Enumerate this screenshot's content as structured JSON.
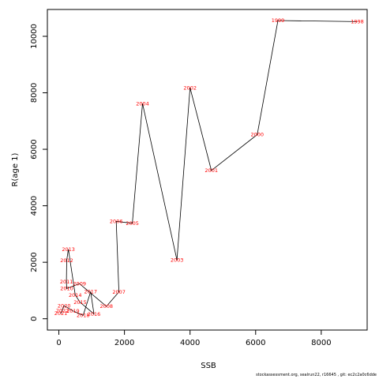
{
  "chart_data": {
    "type": "line",
    "xlabel": "SSB",
    "ylabel": "R(age 1)",
    "xlim": [
      -350,
      9400
    ],
    "ylim": [
      -400,
      10950
    ],
    "xticks": [
      0,
      2000,
      4000,
      6000,
      8000
    ],
    "yticks": [
      0,
      2000,
      4000,
      6000,
      8000,
      10000
    ],
    "grid": false,
    "line_color": "#000000",
    "label_color": "#ff0000",
    "points": [
      {
        "label": "1998",
        "x": 9100,
        "y": 10520
      },
      {
        "label": "1999",
        "x": 6680,
        "y": 10560
      },
      {
        "label": "2000",
        "x": 6050,
        "y": 6520
      },
      {
        "label": "2001",
        "x": 4650,
        "y": 5250
      },
      {
        "label": "2002",
        "x": 4000,
        "y": 8180
      },
      {
        "label": "2003",
        "x": 3600,
        "y": 2080
      },
      {
        "label": "2004",
        "x": 2550,
        "y": 7620
      },
      {
        "label": "2005",
        "x": 2240,
        "y": 3380
      },
      {
        "label": "2006",
        "x": 1750,
        "y": 3450
      },
      {
        "label": "2007",
        "x": 1830,
        "y": 950
      },
      {
        "label": "2008",
        "x": 1450,
        "y": 440
      },
      {
        "label": "2009",
        "x": 630,
        "y": 1240
      },
      {
        "label": "2010",
        "x": 240,
        "y": 1070
      },
      {
        "label": "2011",
        "x": 230,
        "y": 1310
      },
      {
        "label": "2012",
        "x": 240,
        "y": 2070
      },
      {
        "label": "2013",
        "x": 290,
        "y": 2460
      },
      {
        "label": "2014",
        "x": 500,
        "y": 840
      },
      {
        "label": "2015",
        "x": 650,
        "y": 580
      },
      {
        "label": "2016",
        "x": 1070,
        "y": 170
      },
      {
        "label": "2017",
        "x": 970,
        "y": 960
      },
      {
        "label": "2018",
        "x": 740,
        "y": 120
      },
      {
        "label": "2019",
        "x": 430,
        "y": 280
      },
      {
        "label": "2020",
        "x": 160,
        "y": 460
      },
      {
        "label": "2021",
        "x": 60,
        "y": 190
      },
      {
        "label": "2022",
        "x": 110,
        "y": 290
      }
    ]
  },
  "footer": "stockassessment.org, sealrun22, r16645 , git: ec2c2a0c6dde"
}
